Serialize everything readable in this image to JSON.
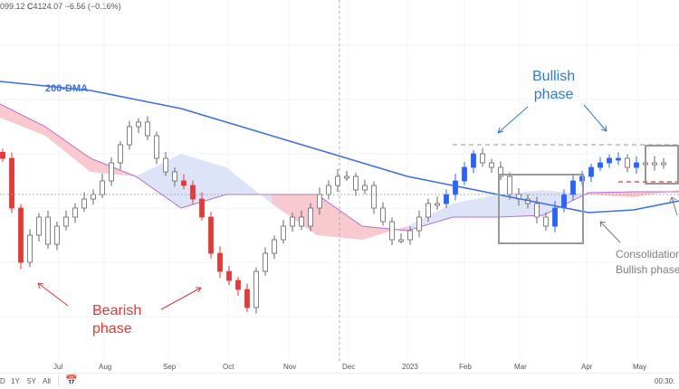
{
  "header": {
    "ohlc_prefix": "099.12",
    "close_label": "C",
    "close": "4124.07",
    "change": "−6.56 (−0.16%)"
  },
  "chart_data": {
    "type": "candlestick",
    "title": "",
    "xlabel": "",
    "ylabel": "",
    "ylim": [
      3300,
      4330
    ],
    "x_ticks": [
      "Jul",
      "Aug",
      "Sep",
      "Oct",
      "Nov",
      "Dec",
      "2023",
      "Feb",
      "Mar",
      "Apr",
      "May"
    ],
    "closes": [
      4015,
      3850,
      3670,
      3760,
      3820,
      3730,
      3790,
      3820,
      3850,
      3880,
      3895,
      3940,
      4000,
      4060,
      4120,
      4135,
      4090,
      4015,
      3970,
      3940,
      3925,
      3880,
      3820,
      3700,
      3640,
      3610,
      3580,
      3520,
      3640,
      3700,
      3745,
      3790,
      3820,
      3790,
      3850,
      3895,
      3925,
      3955,
      3955,
      3910,
      3925,
      3850,
      3805,
      3745,
      3745,
      3775,
      3820,
      3865,
      3865,
      3895,
      3940,
      3985,
      4030,
      4000,
      3985,
      3955,
      3895,
      3880,
      3865,
      3820,
      3790,
      3850,
      3895,
      3940,
      3955,
      3985,
      4000,
      4015,
      4015,
      3985,
      4000,
      4000,
      3994,
      4000
    ],
    "red_ranges": [
      [
        0,
        4
      ],
      [
        20,
        28
      ]
    ],
    "blue_ranges": [
      [
        49,
        53
      ],
      [
        61,
        70
      ]
    ],
    "ichimoku_span_a": [
      4150,
      4090,
      3970,
      3955,
      4030,
      3985,
      3865,
      3760,
      3745,
      3790,
      3865,
      3895,
      3910,
      3895,
      3886,
      3910
    ],
    "ichimoku_span_b": [
      4195,
      4120,
      4015,
      3955,
      3850,
      3895,
      3895,
      3895,
      3790,
      3775,
      3820,
      3820,
      3826,
      3901,
      3904,
      3904
    ],
    "dma200": [
      4270,
      4255,
      4240,
      4210,
      4180,
      4135,
      4090,
      4045,
      4000,
      3955,
      3925,
      3895,
      3865,
      3835,
      3844,
      3874
    ],
    "resistance_level": 4060,
    "support_level": 3937,
    "current_level": 3895,
    "annotations": {
      "dma_label": "200-DMA",
      "bullish": [
        "Bullish",
        "phase"
      ],
      "bearish": [
        "Bearish",
        "phase"
      ],
      "consolidation": [
        "Consolidation wi",
        "Bullish phase."
      ]
    }
  },
  "colors": {
    "red": "#e53935",
    "blue": "#2962ff",
    "dma": "#3d6ee8",
    "cloud_pink": "#f8c9cf",
    "cloud_blue": "#dde4f7",
    "cloud_line": "#b86fcf",
    "annotation_gray": "#808080"
  },
  "bottom_bar": {
    "ranges": [
      "D",
      "1Y",
      "5Y",
      "All"
    ],
    "clock": "00:30:"
  }
}
